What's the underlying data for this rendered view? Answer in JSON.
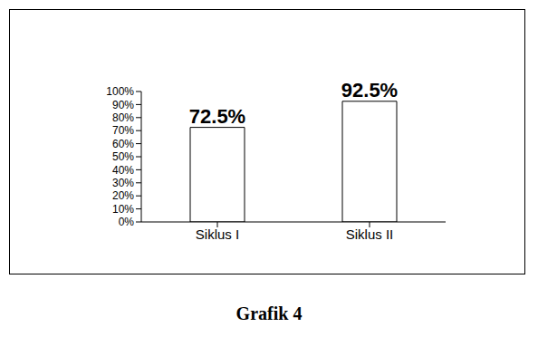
{
  "chart_data": {
    "type": "bar",
    "title": "Grafik 4",
    "categories": [
      "Siklus I",
      "Siklus II"
    ],
    "values": [
      72.5,
      92.5
    ],
    "value_labels": [
      "72.5%",
      "92.5%"
    ],
    "data_labels": true,
    "color": "#ffffff",
    "ylim": [
      0,
      100
    ],
    "yticks": [
      {
        "value": 0,
        "label": "0%"
      },
      {
        "value": 10,
        "label": "10%"
      },
      {
        "value": 20,
        "label": "20%"
      },
      {
        "value": 30,
        "label": "30%"
      },
      {
        "value": 40,
        "label": "40%"
      },
      {
        "value": 50,
        "label": "50%"
      },
      {
        "value": 60,
        "label": "60%"
      },
      {
        "value": 70,
        "label": "70%"
      },
      {
        "value": 80,
        "label": "80%"
      },
      {
        "value": 90,
        "label": "90%"
      },
      {
        "value": 100,
        "label": "100%"
      }
    ]
  }
}
